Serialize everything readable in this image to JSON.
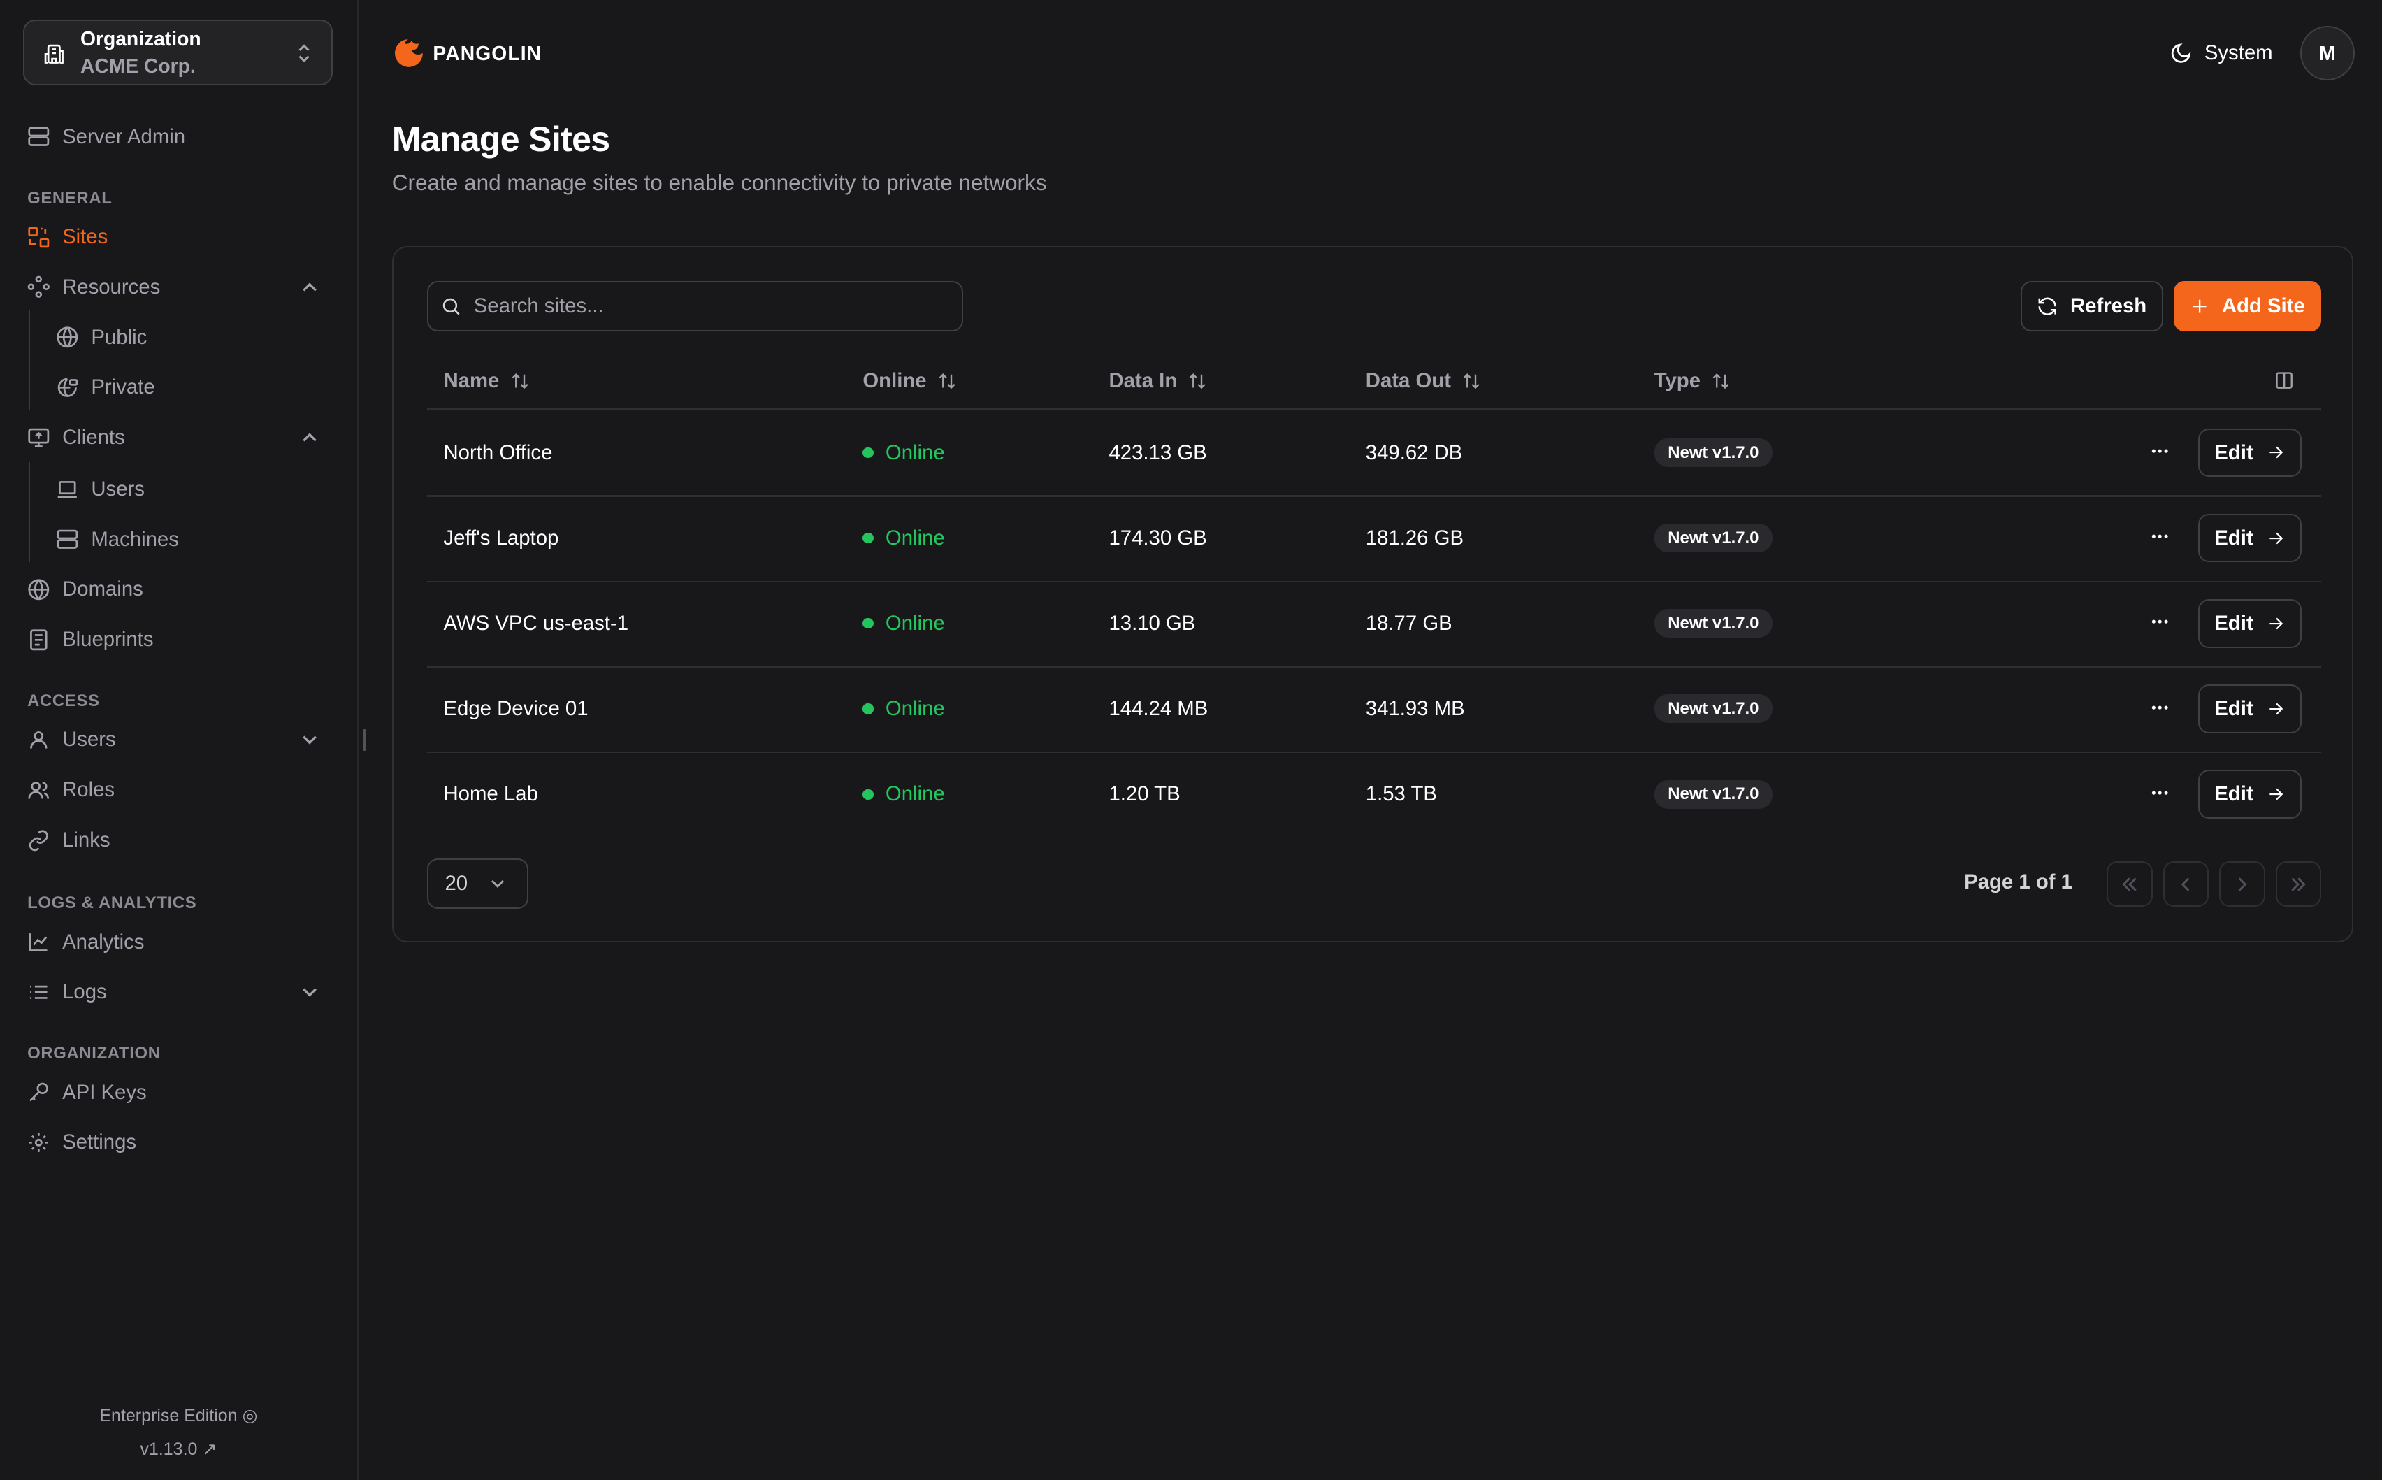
{
  "sidebar": {
    "org_label": "Organization",
    "org_name": "ACME Corp.",
    "server_admin": "Server Admin",
    "sections": {
      "general": "GENERAL",
      "access": "ACCESS",
      "logs": "LOGS & ANALYTICS",
      "organization": "ORGANIZATION"
    },
    "items": {
      "sites": "Sites",
      "resources": "Resources",
      "public": "Public",
      "private": "Private",
      "clients": "Clients",
      "users_sub": "Users",
      "machines": "Machines",
      "domains": "Domains",
      "blueprints": "Blueprints",
      "users": "Users",
      "roles": "Roles",
      "links": "Links",
      "analytics": "Analytics",
      "logs": "Logs",
      "api_keys": "API Keys",
      "settings": "Settings"
    },
    "edition": "Enterprise Edition",
    "version": "v1.13.0"
  },
  "header": {
    "brand": "PANGOLIN",
    "theme": "System",
    "avatar": "M"
  },
  "page": {
    "title": "Manage Sites",
    "subtitle": "Create and manage sites to enable connectivity to private networks"
  },
  "toolbar": {
    "search_placeholder": "Search sites...",
    "refresh": "Refresh",
    "add": "Add Site"
  },
  "table": {
    "columns": [
      "Name",
      "Online",
      "Data In",
      "Data Out",
      "Type"
    ],
    "rows": [
      {
        "name": "North Office",
        "online": "Online",
        "data_in": "423.13 GB",
        "data_out": "349.62 DB",
        "type": "Newt v1.7.0",
        "edit": "Edit"
      },
      {
        "name": "Jeff's Laptop",
        "online": "Online",
        "data_in": "174.30 GB",
        "data_out": "181.26 GB",
        "type": "Newt v1.7.0",
        "edit": "Edit"
      },
      {
        "name": "AWS VPC us-east-1",
        "online": "Online",
        "data_in": "13.10 GB",
        "data_out": "18.77 GB",
        "type": "Newt v1.7.0",
        "edit": "Edit"
      },
      {
        "name": "Edge Device 01",
        "online": "Online",
        "data_in": "144.24 MB",
        "data_out": "341.93 MB",
        "type": "Newt v1.7.0",
        "edit": "Edit"
      },
      {
        "name": "Home Lab",
        "online": "Online",
        "data_in": "1.20 TB",
        "data_out": "1.53 TB",
        "type": "Newt v1.7.0",
        "edit": "Edit"
      }
    ]
  },
  "pagination": {
    "page_size": "20",
    "page_info": "Page 1 of 1"
  },
  "colors": {
    "accent": "#f4661b",
    "online": "#22c55e",
    "background": "#18181b"
  }
}
